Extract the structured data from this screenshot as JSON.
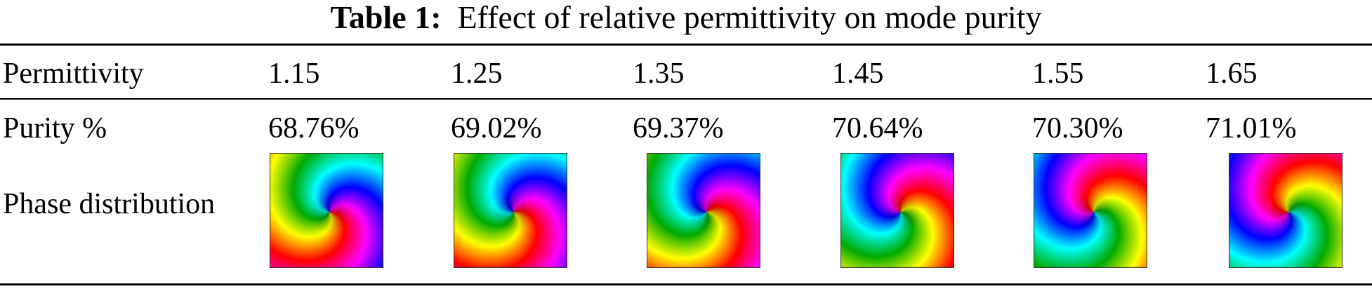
{
  "table": {
    "caption_label": "Table 1:",
    "caption_text": "Effect of relative permittivity on mode purity",
    "rows": {
      "permittivity_label": "Permittivity",
      "purity_label": "Purity %",
      "phase_label": "Phase distribution"
    },
    "columns": [
      {
        "permittivity": "1.15",
        "purity": "68.76%",
        "phase_rotation_deg": 0
      },
      {
        "permittivity": "1.25",
        "purity": "69.02%",
        "phase_rotation_deg": 25
      },
      {
        "permittivity": "1.35",
        "purity": "69.37%",
        "phase_rotation_deg": 55
      },
      {
        "permittivity": "1.45",
        "purity": "70.64%",
        "phase_rotation_deg": 110
      },
      {
        "permittivity": "1.55",
        "purity": "70.30%",
        "phase_rotation_deg": 150
      },
      {
        "permittivity": "1.65",
        "purity": "71.01%",
        "phase_rotation_deg": 185
      }
    ]
  },
  "colors": {
    "phase_colormap": [
      "#ff0000",
      "#ffff00",
      "#00aa00",
      "#00ffff",
      "#0000ff",
      "#ff00ff",
      "#ff0000"
    ]
  }
}
